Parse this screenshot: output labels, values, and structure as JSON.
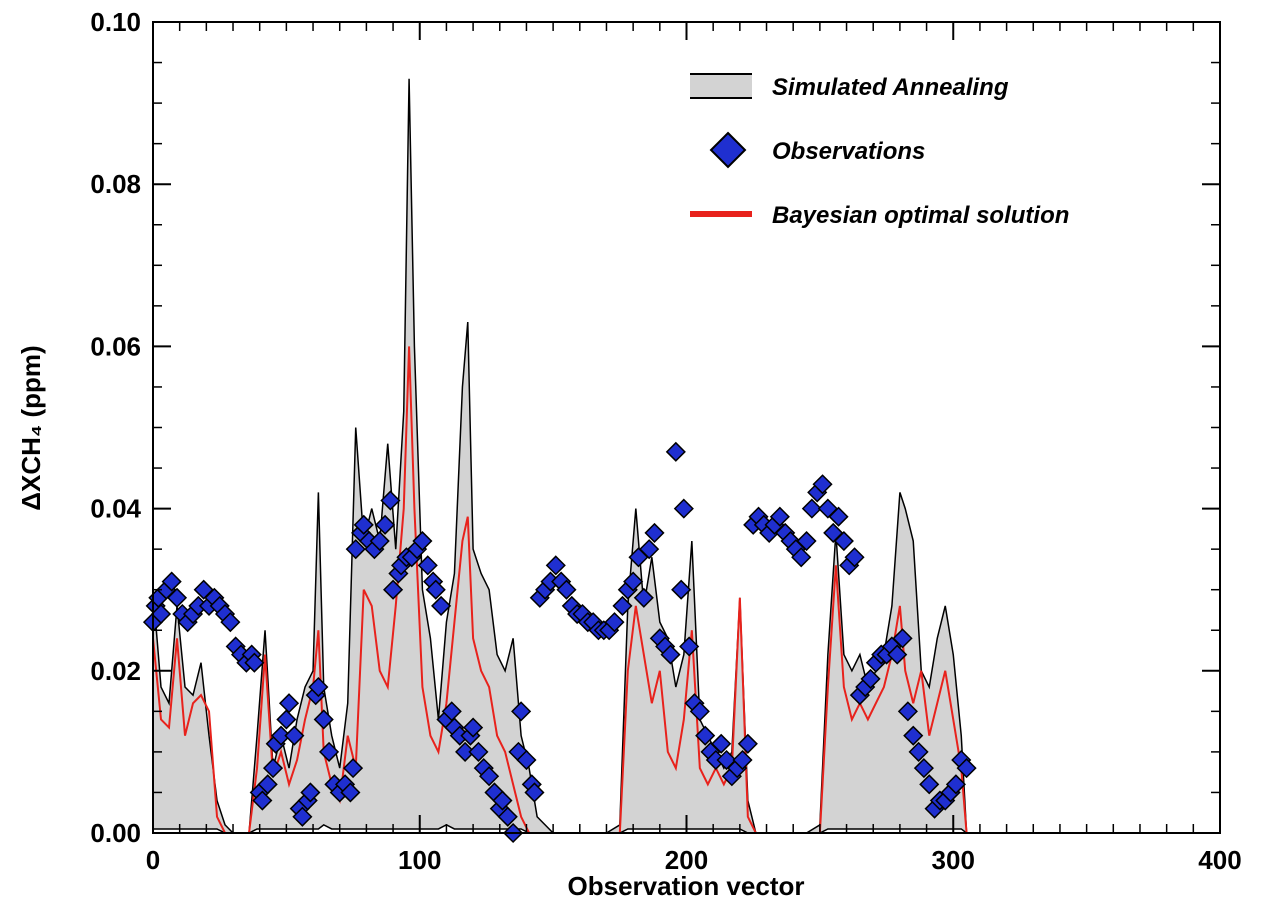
{
  "chart_data": {
    "type": "scatter",
    "x_label": "Observation vector",
    "y_label": "ΔXCH₄ (ppm)",
    "xlim": [
      0,
      400
    ],
    "ylim": [
      0,
      0.1
    ],
    "xticks": [
      0,
      100,
      200,
      300,
      400
    ],
    "yticks": [
      {
        "value": 0,
        "label": "0.00"
      },
      0.02,
      0.04,
      0.06,
      0.08,
      {
        "value": 0.1,
        "label": "0.10"
      }
    ],
    "legend": "upper right",
    "series": [
      {
        "name": "Simulated Annealing",
        "type": "area",
        "color": "#d3d3d3",
        "x": [
          0,
          3,
          6,
          9,
          12,
          15,
          18,
          21,
          24,
          27,
          30,
          33,
          36,
          39,
          42,
          45,
          48,
          51,
          54,
          57,
          60,
          62,
          64,
          67,
          70,
          73,
          76,
          79,
          82,
          85,
          88,
          91,
          94,
          96,
          98,
          101,
          104,
          107,
          110,
          113,
          116,
          118,
          120,
          123,
          126,
          129,
          132,
          135,
          138,
          141,
          144,
          147,
          150,
          155,
          160,
          165,
          170,
          175,
          178,
          181,
          184,
          187,
          190,
          193,
          196,
          199,
          202,
          205,
          208,
          211,
          214,
          217,
          220,
          223,
          226,
          230,
          235,
          240,
          245,
          250,
          253,
          256,
          259,
          262,
          265,
          268,
          271,
          274,
          277,
          280,
          282,
          285,
          288,
          291,
          294,
          297,
          300,
          303,
          305
        ],
        "values": [
          0.03,
          0.018,
          0.016,
          0.028,
          0.018,
          0.017,
          0.021,
          0.012,
          0.004,
          0.001,
          0,
          0,
          0,
          0.012,
          0.025,
          0.008,
          0.012,
          0.008,
          0.014,
          0.018,
          0.02,
          0.042,
          0.018,
          0.012,
          0.008,
          0.016,
          0.05,
          0.036,
          0.04,
          0.036,
          0.048,
          0.035,
          0.052,
          0.093,
          0.06,
          0.03,
          0.024,
          0.014,
          0.026,
          0.032,
          0.055,
          0.063,
          0.035,
          0.032,
          0.03,
          0.022,
          0.02,
          0.024,
          0.012,
          0.008,
          0.002,
          0.001,
          0,
          0,
          0,
          0,
          0,
          0.001,
          0.028,
          0.04,
          0.028,
          0.034,
          0.026,
          0.024,
          0.018,
          0.022,
          0.036,
          0.014,
          0.012,
          0.01,
          0.008,
          0.01,
          0.029,
          0.004,
          0,
          0,
          0,
          0,
          0,
          0.001,
          0.022,
          0.037,
          0.022,
          0.02,
          0.022,
          0.018,
          0.02,
          0.022,
          0.028,
          0.042,
          0.04,
          0.036,
          0.02,
          0.018,
          0.024,
          0.028,
          0.022,
          0.012,
          0
        ],
        "lower": [
          0.0005,
          0.0005,
          0.0005,
          0.0005,
          0.0005,
          0.0005,
          0.0005,
          0.0005,
          0.0005,
          0,
          0,
          0,
          0,
          0.0005,
          0.0005,
          0.0005,
          0.0005,
          0.0005,
          0.0005,
          0.0005,
          0.0005,
          0.0005,
          0.001,
          0.0005,
          0.0005,
          0.0005,
          0.0005,
          0.0005,
          0.0005,
          0.0005,
          0.0005,
          0.0005,
          0.0005,
          0.0005,
          0.0005,
          0.0005,
          0.0005,
          0.0005,
          0.001,
          0.0005,
          0.0005,
          0.0005,
          0.0005,
          0.0005,
          0.0005,
          0.0005,
          0.0005,
          0.0005,
          0.0005,
          0,
          0,
          0,
          0,
          0,
          0,
          0,
          0,
          0,
          0.0005,
          0.0005,
          0.0005,
          0.0005,
          0.0005,
          0.0005,
          0.0005,
          0.0005,
          0.0005,
          0.0005,
          0.0005,
          0.0005,
          0.0005,
          0.0005,
          0.0005,
          0,
          0,
          0,
          0,
          0,
          0,
          0,
          0.0005,
          0.0005,
          0.0005,
          0.0005,
          0.0005,
          0.0005,
          0.0005,
          0.0005,
          0.0005,
          0.0005,
          0.0005,
          0.0005,
          0.0005,
          0.0005,
          0.0005,
          0.0005,
          0.0005,
          0.0005,
          0
        ]
      },
      {
        "name": "Observations",
        "type": "scatter",
        "color": "#1f2fd0",
        "x": [
          0,
          1,
          2,
          3,
          5,
          7,
          9,
          11,
          13,
          15,
          17,
          19,
          21,
          23,
          25,
          27,
          29,
          31,
          33,
          35,
          37,
          38,
          40,
          41,
          43,
          45,
          46,
          48,
          50,
          51,
          53,
          55,
          56,
          58,
          59,
          61,
          62,
          64,
          66,
          68,
          70,
          72,
          74,
          75,
          76,
          78,
          79,
          81,
          83,
          85,
          87,
          89,
          90,
          92,
          93,
          95,
          97,
          99,
          101,
          103,
          105,
          106,
          108,
          110,
          112,
          113,
          115,
          117,
          119,
          120,
          122,
          124,
          126,
          128,
          130,
          131,
          133,
          135,
          137,
          138,
          140,
          142,
          143,
          145,
          147,
          149,
          151,
          153,
          155,
          157,
          159,
          161,
          163,
          165,
          167,
          169,
          171,
          173,
          176,
          178,
          180,
          182,
          184,
          186,
          188,
          190,
          192,
          194,
          196,
          198,
          199,
          201,
          203,
          205,
          207,
          209,
          211,
          213,
          215,
          217,
          219,
          221,
          223,
          225,
          227,
          229,
          231,
          233,
          235,
          237,
          239,
          241,
          243,
          245,
          247,
          249,
          251,
          253,
          255,
          257,
          259,
          261,
          263,
          265,
          267,
          269,
          271,
          273,
          275,
          277,
          279,
          281,
          283,
          285,
          287,
          289,
          291,
          293,
          295,
          297,
          299,
          301,
          303,
          305
        ],
        "values": [
          0.026,
          0.028,
          0.029,
          0.027,
          0.03,
          0.031,
          0.029,
          0.027,
          0.026,
          0.027,
          0.028,
          0.03,
          0.028,
          0.029,
          0.028,
          0.027,
          0.026,
          0.023,
          0.022,
          0.021,
          0.022,
          0.021,
          0.005,
          0.004,
          0.006,
          0.008,
          0.011,
          0.012,
          0.014,
          0.016,
          0.012,
          0.003,
          0.002,
          0.004,
          0.005,
          0.017,
          0.018,
          0.014,
          0.01,
          0.006,
          0.005,
          0.006,
          0.005,
          0.008,
          0.035,
          0.037,
          0.038,
          0.036,
          0.035,
          0.036,
          0.038,
          0.041,
          0.03,
          0.032,
          0.033,
          0.034,
          0.034,
          0.035,
          0.036,
          0.033,
          0.031,
          0.03,
          0.028,
          0.014,
          0.015,
          0.013,
          0.012,
          0.01,
          0.012,
          0.013,
          0.01,
          0.008,
          0.007,
          0.005,
          0.003,
          0.004,
          0.002,
          0.0,
          0.01,
          0.015,
          0.009,
          0.006,
          0.005,
          0.029,
          0.03,
          0.031,
          0.033,
          0.031,
          0.03,
          0.028,
          0.027,
          0.027,
          0.026,
          0.026,
          0.025,
          0.025,
          0.025,
          0.026,
          0.028,
          0.03,
          0.031,
          0.034,
          0.029,
          0.035,
          0.037,
          0.024,
          0.023,
          0.022,
          0.047,
          0.03,
          0.04,
          0.023,
          0.016,
          0.015,
          0.012,
          0.01,
          0.009,
          0.011,
          0.009,
          0.007,
          0.008,
          0.009,
          0.011,
          0.038,
          0.039,
          0.038,
          0.037,
          0.038,
          0.039,
          0.037,
          0.036,
          0.035,
          0.034,
          0.036,
          0.04,
          0.042,
          0.043,
          0.04,
          0.037,
          0.039,
          0.036,
          0.033,
          0.034,
          0.017,
          0.018,
          0.019,
          0.021,
          0.022,
          0.022,
          0.023,
          0.022,
          0.024,
          0.015,
          0.012,
          0.01,
          0.008,
          0.006,
          0.003,
          0.004,
          0.004,
          0.005,
          0.006,
          0.009,
          0.008
        ]
      },
      {
        "name": "Bayesian optimal solution",
        "type": "line",
        "color": "#e8221c",
        "x": [
          0,
          3,
          6,
          9,
          12,
          15,
          18,
          21,
          24,
          27,
          30,
          33,
          36,
          39,
          42,
          45,
          48,
          51,
          54,
          57,
          60,
          62,
          64,
          67,
          70,
          73,
          76,
          79,
          82,
          85,
          88,
          91,
          94,
          96,
          98,
          101,
          104,
          107,
          110,
          113,
          116,
          118,
          120,
          123,
          126,
          129,
          132,
          135,
          138,
          141,
          144,
          147,
          150,
          155,
          160,
          165,
          170,
          175,
          178,
          181,
          184,
          187,
          190,
          193,
          196,
          199,
          202,
          205,
          208,
          211,
          214,
          217,
          220,
          223,
          226,
          230,
          235,
          240,
          245,
          250,
          253,
          256,
          259,
          262,
          265,
          268,
          271,
          274,
          277,
          280,
          282,
          285,
          288,
          291,
          294,
          297,
          300,
          303,
          305
        ],
        "values": [
          0.024,
          0.014,
          0.013,
          0.024,
          0.012,
          0.016,
          0.017,
          0.015,
          0.002,
          0,
          0,
          0,
          0,
          0.008,
          0.022,
          0.007,
          0.01,
          0.006,
          0.009,
          0.014,
          0.018,
          0.025,
          0.01,
          0.006,
          0.004,
          0.012,
          0.008,
          0.03,
          0.028,
          0.02,
          0.018,
          0.028,
          0.04,
          0.06,
          0.04,
          0.018,
          0.012,
          0.01,
          0.016,
          0.026,
          0.036,
          0.039,
          0.024,
          0.02,
          0.018,
          0.012,
          0.01,
          0.006,
          0.002,
          0,
          0,
          0,
          0,
          0,
          0,
          0,
          0,
          0,
          0.02,
          0.028,
          0.022,
          0.016,
          0.02,
          0.01,
          0.008,
          0.014,
          0.025,
          0.008,
          0.006,
          0.008,
          0.006,
          0.008,
          0.029,
          0.002,
          0,
          0,
          0,
          0,
          0,
          0,
          0.018,
          0.033,
          0.018,
          0.014,
          0.016,
          0.014,
          0.016,
          0.018,
          0.022,
          0.028,
          0.02,
          0.016,
          0.02,
          0.012,
          0.016,
          0.02,
          0.014,
          0.008,
          0
        ]
      }
    ]
  }
}
